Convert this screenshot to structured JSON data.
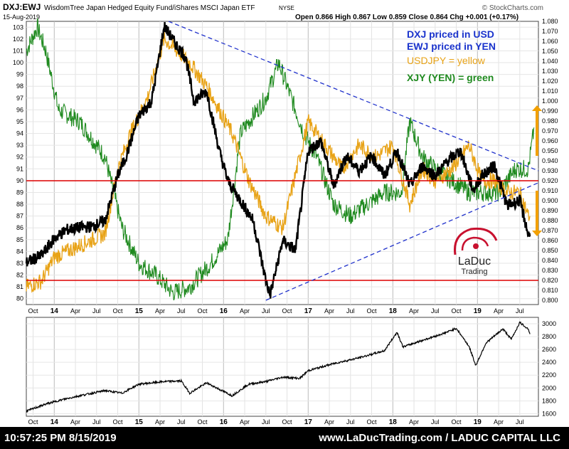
{
  "header": {
    "symbol": "DXJ:EWJ",
    "description": "WisdomTree Japan Hedged Equity Fund/iShares MSCI Japan ETF",
    "exchange": "NYSE",
    "date": "15-Aug-2019",
    "ohlc": "Open 0.866   High 0.867   Low 0.859   Close 0.864   Chg +0.001 (+0.17%)",
    "watermark": "© StockCharts.com"
  },
  "legend": {
    "line1": "DXJ priced in USD",
    "line2": "EWJ priced in YEN",
    "line3": "USDJPY = yellow",
    "line4": "XJY (YEN) = green"
  },
  "logo": {
    "name": "LaDuc",
    "sub": "Trading"
  },
  "footer": {
    "left": "10:57:25 PM 8/15/2019",
    "right": "www.LaDucTrading.com / LADUC CAPITAL LLC"
  },
  "colors": {
    "ratio": "#000000",
    "usdjpy": "#e8a317",
    "xjy": "#1f8a1f",
    "trend": "#2233cc",
    "support": "#dd0000",
    "arrow": "#f2a000",
    "legend_blue": "#1a33cc"
  },
  "chart_data": [
    {
      "type": "line",
      "panel": "main",
      "x_labels": [
        "Oct",
        "14",
        "Apr",
        "Jul",
        "Oct",
        "15",
        "Apr",
        "Jul",
        "Oct",
        "16",
        "Apr",
        "Jul",
        "Oct",
        "17",
        "Apr",
        "Jul",
        "Oct",
        "18",
        "Apr",
        "Jul",
        "Oct",
        "19",
        "Apr",
        "Jul"
      ],
      "y_left_ticks": [
        "103",
        "102",
        "101",
        "100",
        "99",
        "98",
        "97",
        "96",
        "95",
        "94",
        "93",
        "92",
        "91",
        "90",
        "89",
        "88",
        "87",
        "86",
        "85",
        "84",
        "83",
        "82",
        "81",
        "80"
      ],
      "y_right_ticks": [
        "1.080",
        "1.070",
        "1.060",
        "1.050",
        "1.040",
        "1.030",
        "1.020",
        "1.010",
        "1.000",
        "0.990",
        "0.980",
        "0.970",
        "0.960",
        "0.950",
        "0.940",
        "0.930",
        "0.920",
        "0.910",
        "0.900",
        "0.890",
        "0.880",
        "0.870",
        "0.860",
        "0.850",
        "0.840",
        "0.830",
        "0.820",
        "0.810",
        "0.800"
      ],
      "ylim_right": [
        0.8,
        1.08
      ],
      "ylim_left": [
        79.5,
        103.5
      ],
      "x_range_years": [
        2013.67,
        2019.72
      ],
      "series": [
        {
          "name": "DXJ priced in USD / EWJ priced in YEN",
          "axis": "right",
          "x": [
            2013.67,
            2013.85,
            2014.0,
            2014.15,
            2014.3,
            2014.45,
            2014.6,
            2014.75,
            2014.85,
            2015.0,
            2015.15,
            2015.3,
            2015.45,
            2015.55,
            2015.65,
            2015.8,
            2015.95,
            2016.05,
            2016.2,
            2016.35,
            2016.5,
            2016.55,
            2016.7,
            2016.85,
            2017.0,
            2017.15,
            2017.3,
            2017.45,
            2017.6,
            2017.75,
            2017.9,
            2018.05,
            2018.2,
            2018.35,
            2018.5,
            2018.65,
            2018.8,
            2018.95,
            2019.05,
            2019.2,
            2019.35,
            2019.5,
            2019.6,
            2019.62
          ],
          "y": [
            0.838,
            0.845,
            0.862,
            0.871,
            0.873,
            0.874,
            0.88,
            0.925,
            0.945,
            0.985,
            1.0,
            1.075,
            1.055,
            1.045,
            1.0,
            1.01,
            0.95,
            0.92,
            0.9,
            0.88,
            0.82,
            0.805,
            0.86,
            0.85,
            0.95,
            0.96,
            0.915,
            0.945,
            0.93,
            0.945,
            0.925,
            0.95,
            0.915,
            0.935,
            0.925,
            0.94,
            0.95,
            0.91,
            0.925,
            0.935,
            0.895,
            0.9,
            0.866,
            0.864
          ]
        },
        {
          "name": "USDJPY",
          "axis": "left",
          "x": [
            2013.67,
            2013.85,
            2014.0,
            2014.3,
            2014.6,
            2014.75,
            2014.9,
            2015.1,
            2015.3,
            2015.45,
            2015.6,
            2015.8,
            2015.95,
            2016.1,
            2016.3,
            2016.5,
            2016.7,
            2016.9,
            2017.0,
            2017.2,
            2017.4,
            2017.6,
            2017.8,
            2018.0,
            2018.2,
            2018.35,
            2018.5,
            2018.7,
            2018.9,
            2019.05,
            2019.2,
            2019.35,
            2019.5,
            2019.6,
            2019.62
          ],
          "y": [
            81,
            81.5,
            83.5,
            84.5,
            85.5,
            91,
            94,
            97,
            102,
            101,
            100,
            98,
            96,
            94,
            90,
            87,
            86,
            92,
            95,
            93,
            91,
            93,
            92,
            93,
            88,
            91,
            90,
            91,
            93,
            90,
            90,
            89,
            89,
            87,
            87
          ]
        },
        {
          "name": "XJY (YEN)",
          "axis": "left",
          "x": [
            2013.67,
            2013.8,
            2013.9,
            2014.05,
            2014.3,
            2014.6,
            2014.8,
            2015.0,
            2015.2,
            2015.4,
            2015.6,
            2015.85,
            2016.05,
            2016.2,
            2016.4,
            2016.5,
            2016.65,
            2016.8,
            2016.95,
            2017.1,
            2017.3,
            2017.5,
            2017.7,
            2017.9,
            2018.1,
            2018.2,
            2018.35,
            2018.5,
            2018.7,
            2018.9,
            2019.05,
            2019.25,
            2019.45,
            2019.6,
            2019.67
          ],
          "y": [
            101,
            103,
            101,
            96,
            95,
            92,
            86,
            83,
            82,
            80.5,
            81,
            83,
            85,
            94,
            96,
            97,
            100,
            97,
            94,
            92,
            88,
            87,
            88,
            89,
            89,
            95,
            92,
            91,
            90,
            89,
            89,
            89,
            91,
            91,
            94.5
          ]
        }
      ],
      "trend_lines": [
        {
          "name": "upper trendline",
          "from": [
            2015.35,
            1.08
          ],
          "to": [
            2019.72,
            0.93
          ]
        },
        {
          "name": "lower trendline",
          "from": [
            2016.5,
            0.8
          ],
          "to": [
            2019.72,
            0.918
          ]
        }
      ],
      "horizontal_lines": [
        {
          "name": "support 0.920",
          "value": 0.92,
          "axis": "right"
        },
        {
          "name": "support 0.820",
          "value": 0.82,
          "axis": "right"
        }
      ],
      "arrows": [
        {
          "name": "up arrow",
          "x": 2019.72,
          "from": 0.945,
          "to": 0.99
        },
        {
          "name": "down arrow",
          "x": 2019.72,
          "from": 0.91,
          "to": 0.87
        }
      ]
    },
    {
      "type": "line",
      "panel": "lower",
      "x_labels": [
        "Oct",
        "14",
        "Apr",
        "Jul",
        "Oct",
        "15",
        "Apr",
        "Jul",
        "Oct",
        "16",
        "Apr",
        "Jul",
        "Oct",
        "17",
        "Apr",
        "Jul",
        "Oct",
        "18",
        "Apr",
        "Jul",
        "Oct",
        "19",
        "Apr",
        "Jul"
      ],
      "y_right_ticks": [
        "3000",
        "2800",
        "2600",
        "2400",
        "2200",
        "2000",
        "1800",
        "1600"
      ],
      "ylim": [
        1560,
        3100
      ],
      "series": [
        {
          "x": [
            2013.67,
            2013.9,
            2014.1,
            2014.3,
            2014.6,
            2014.8,
            2015.0,
            2015.3,
            2015.5,
            2015.6,
            2015.8,
            2016.1,
            2016.3,
            2016.5,
            2016.7,
            2016.9,
            2017.0,
            2017.3,
            2017.6,
            2017.9,
            2018.05,
            2018.12,
            2018.3,
            2018.6,
            2018.75,
            2018.9,
            2018.98,
            2019.1,
            2019.3,
            2019.4,
            2019.5,
            2019.6,
            2019.62
          ],
          "y": [
            1640,
            1750,
            1820,
            1880,
            1960,
            1920,
            2060,
            2100,
            2110,
            1920,
            2080,
            1880,
            2060,
            2100,
            2170,
            2150,
            2270,
            2380,
            2470,
            2580,
            2870,
            2640,
            2720,
            2850,
            2930,
            2650,
            2350,
            2700,
            2920,
            2760,
            3020,
            2920,
            2840
          ]
        }
      ]
    }
  ]
}
